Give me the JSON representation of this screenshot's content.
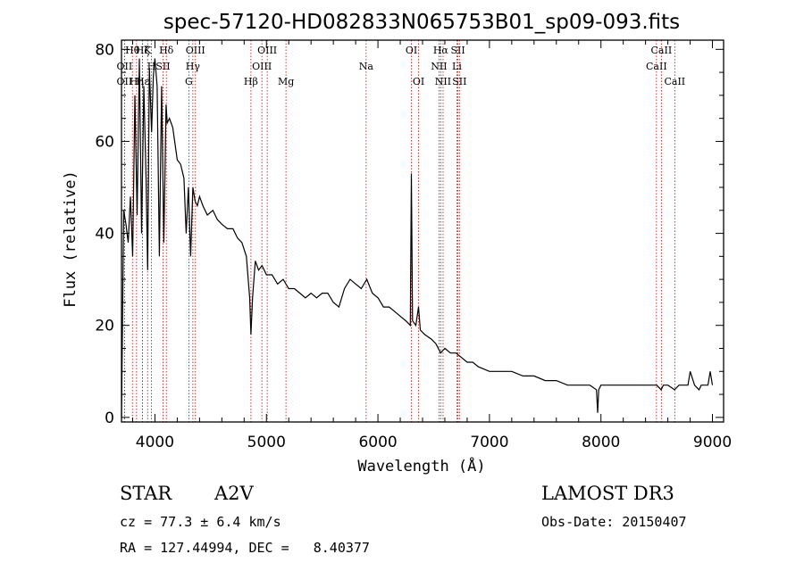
{
  "chart_data": {
    "type": "line",
    "title": "spec-57120-HD082833N065753B01_sp09-093.fits",
    "xlabel": "Wavelength (Å)",
    "ylabel": "Flux (relative)",
    "xlim": [
      3700,
      9100
    ],
    "ylim": [
      -1,
      82
    ],
    "xticks": [
      4000,
      5000,
      6000,
      7000,
      8000,
      9000
    ],
    "yticks": [
      0,
      20,
      40,
      60,
      80
    ],
    "series": [
      {
        "name": "spectrum",
        "x": [
          3700,
          3720,
          3740,
          3760,
          3780,
          3800,
          3820,
          3840,
          3860,
          3880,
          3900,
          3920,
          3935,
          3950,
          3970,
          3985,
          4000,
          4020,
          4040,
          4060,
          4080,
          4100,
          4110,
          4130,
          4160,
          4200,
          4230,
          4260,
          4280,
          4300,
          4320,
          4340,
          4360,
          4380,
          4400,
          4430,
          4470,
          4520,
          4560,
          4600,
          4650,
          4700,
          4740,
          4780,
          4820,
          4850,
          4861,
          4875,
          4900,
          4930,
          4960,
          5000,
          5050,
          5100,
          5150,
          5200,
          5250,
          5300,
          5350,
          5400,
          5450,
          5500,
          5550,
          5600,
          5650,
          5700,
          5750,
          5800,
          5850,
          5900,
          5950,
          6000,
          6050,
          6100,
          6150,
          6200,
          6250,
          6290,
          6300,
          6310,
          6340,
          6364,
          6380,
          6420,
          6480,
          6520,
          6562,
          6600,
          6650,
          6700,
          6750,
          6800,
          6850,
          6900,
          7000,
          7100,
          7200,
          7300,
          7400,
          7500,
          7600,
          7700,
          7800,
          7900,
          7960,
          7970,
          7980,
          8000,
          8100,
          8200,
          8300,
          8400,
          8500,
          8540,
          8560,
          8600,
          8660,
          8700,
          8750,
          8780,
          8800,
          8840,
          8880,
          8900,
          8930,
          8960,
          8980,
          9000
        ],
        "y": [
          0,
          45,
          42,
          38,
          48,
          35,
          70,
          44,
          78,
          40,
          72,
          52,
          32,
          76,
          62,
          74,
          78,
          72,
          35,
          72,
          38,
          68,
          64,
          65,
          63,
          56,
          55,
          52,
          40,
          50,
          35,
          50,
          47,
          46,
          48,
          46,
          44,
          45,
          43,
          42,
          41,
          41,
          39,
          38,
          35,
          26,
          18,
          26,
          34,
          32,
          33,
          31,
          31,
          29,
          30,
          28,
          28,
          27,
          26,
          27,
          26,
          27,
          27,
          25,
          24,
          28,
          30,
          29,
          28,
          30,
          27,
          26,
          24,
          24,
          23,
          22,
          21,
          20,
          53,
          21,
          20,
          24,
          19,
          18,
          17,
          16,
          14,
          15,
          14,
          14,
          13,
          12,
          12,
          11,
          10,
          10,
          10,
          9,
          9,
          8,
          8,
          7,
          7,
          7,
          6,
          1,
          6,
          7,
          7,
          7,
          7,
          7,
          7,
          6,
          7,
          7,
          6,
          7,
          7,
          7,
          10,
          7,
          6,
          7,
          7,
          7,
          10,
          7
        ]
      }
    ],
    "line_markers": [
      {
        "label": "OII",
        "wavelength": 3727,
        "row": 2
      },
      {
        "label": "Hθ",
        "wavelength": 3798,
        "row": 1
      },
      {
        "label": "OII",
        "wavelength": 3727,
        "row": 3
      },
      {
        "label": "Hη",
        "wavelength": 3835,
        "row": 3
      },
      {
        "label": "Hε",
        "wavelength": 3889,
        "row": 3
      },
      {
        "label": "Hζ",
        "wavelength": 3889,
        "row": 1
      },
      {
        "label": "K",
        "wavelength": 3934,
        "row": 1
      },
      {
        "label": "H",
        "wavelength": 3969,
        "row": 2
      },
      {
        "label": "Hδ",
        "wavelength": 4102,
        "row": 1
      },
      {
        "label": "SII",
        "wavelength": 4072,
        "row": 2
      },
      {
        "label": "OIII",
        "wavelength": 4363,
        "row": 1
      },
      {
        "label": "Hγ",
        "wavelength": 4340,
        "row": 2
      },
      {
        "label": "G",
        "wavelength": 4304,
        "row": 3
      },
      {
        "label": "Hβ",
        "wavelength": 4861,
        "row": 3
      },
      {
        "label": "OIII",
        "wavelength": 5007,
        "row": 1
      },
      {
        "label": "OIII",
        "wavelength": 4959,
        "row": 2
      },
      {
        "label": "Mg",
        "wavelength": 5175,
        "row": 3
      },
      {
        "label": "Na",
        "wavelength": 5894,
        "row": 2
      },
      {
        "label": "OI",
        "wavelength": 6300,
        "row": 1
      },
      {
        "label": "OI",
        "wavelength": 6364,
        "row": 3
      },
      {
        "label": "Hα",
        "wavelength": 6563,
        "row": 1
      },
      {
        "label": "NII",
        "wavelength": 6548,
        "row": 2
      },
      {
        "label": "NII",
        "wavelength": 6584,
        "row": 3
      },
      {
        "label": "SII",
        "wavelength": 6717,
        "row": 1
      },
      {
        "label": "Li",
        "wavelength": 6708,
        "row": 2
      },
      {
        "label": "SII",
        "wavelength": 6731,
        "row": 3
      },
      {
        "label": "CaII",
        "wavelength": 8542,
        "row": 1
      },
      {
        "label": "CaII",
        "wavelength": 8498,
        "row": 2
      },
      {
        "label": "CaII",
        "wavelength": 8662,
        "row": 3
      }
    ]
  },
  "info": {
    "class": "STAR",
    "subclass": "A2V",
    "survey": "LAMOST DR3",
    "cz": "cz = 77.3 ± 6.4 km/s",
    "obs_date": "Obs-Date: 20150407",
    "radec": "RA = 127.44994, DEC =   8.40377"
  },
  "colors": {
    "spectrum": "#000000",
    "marker_line": "#cc0000",
    "axes": "#000000"
  }
}
